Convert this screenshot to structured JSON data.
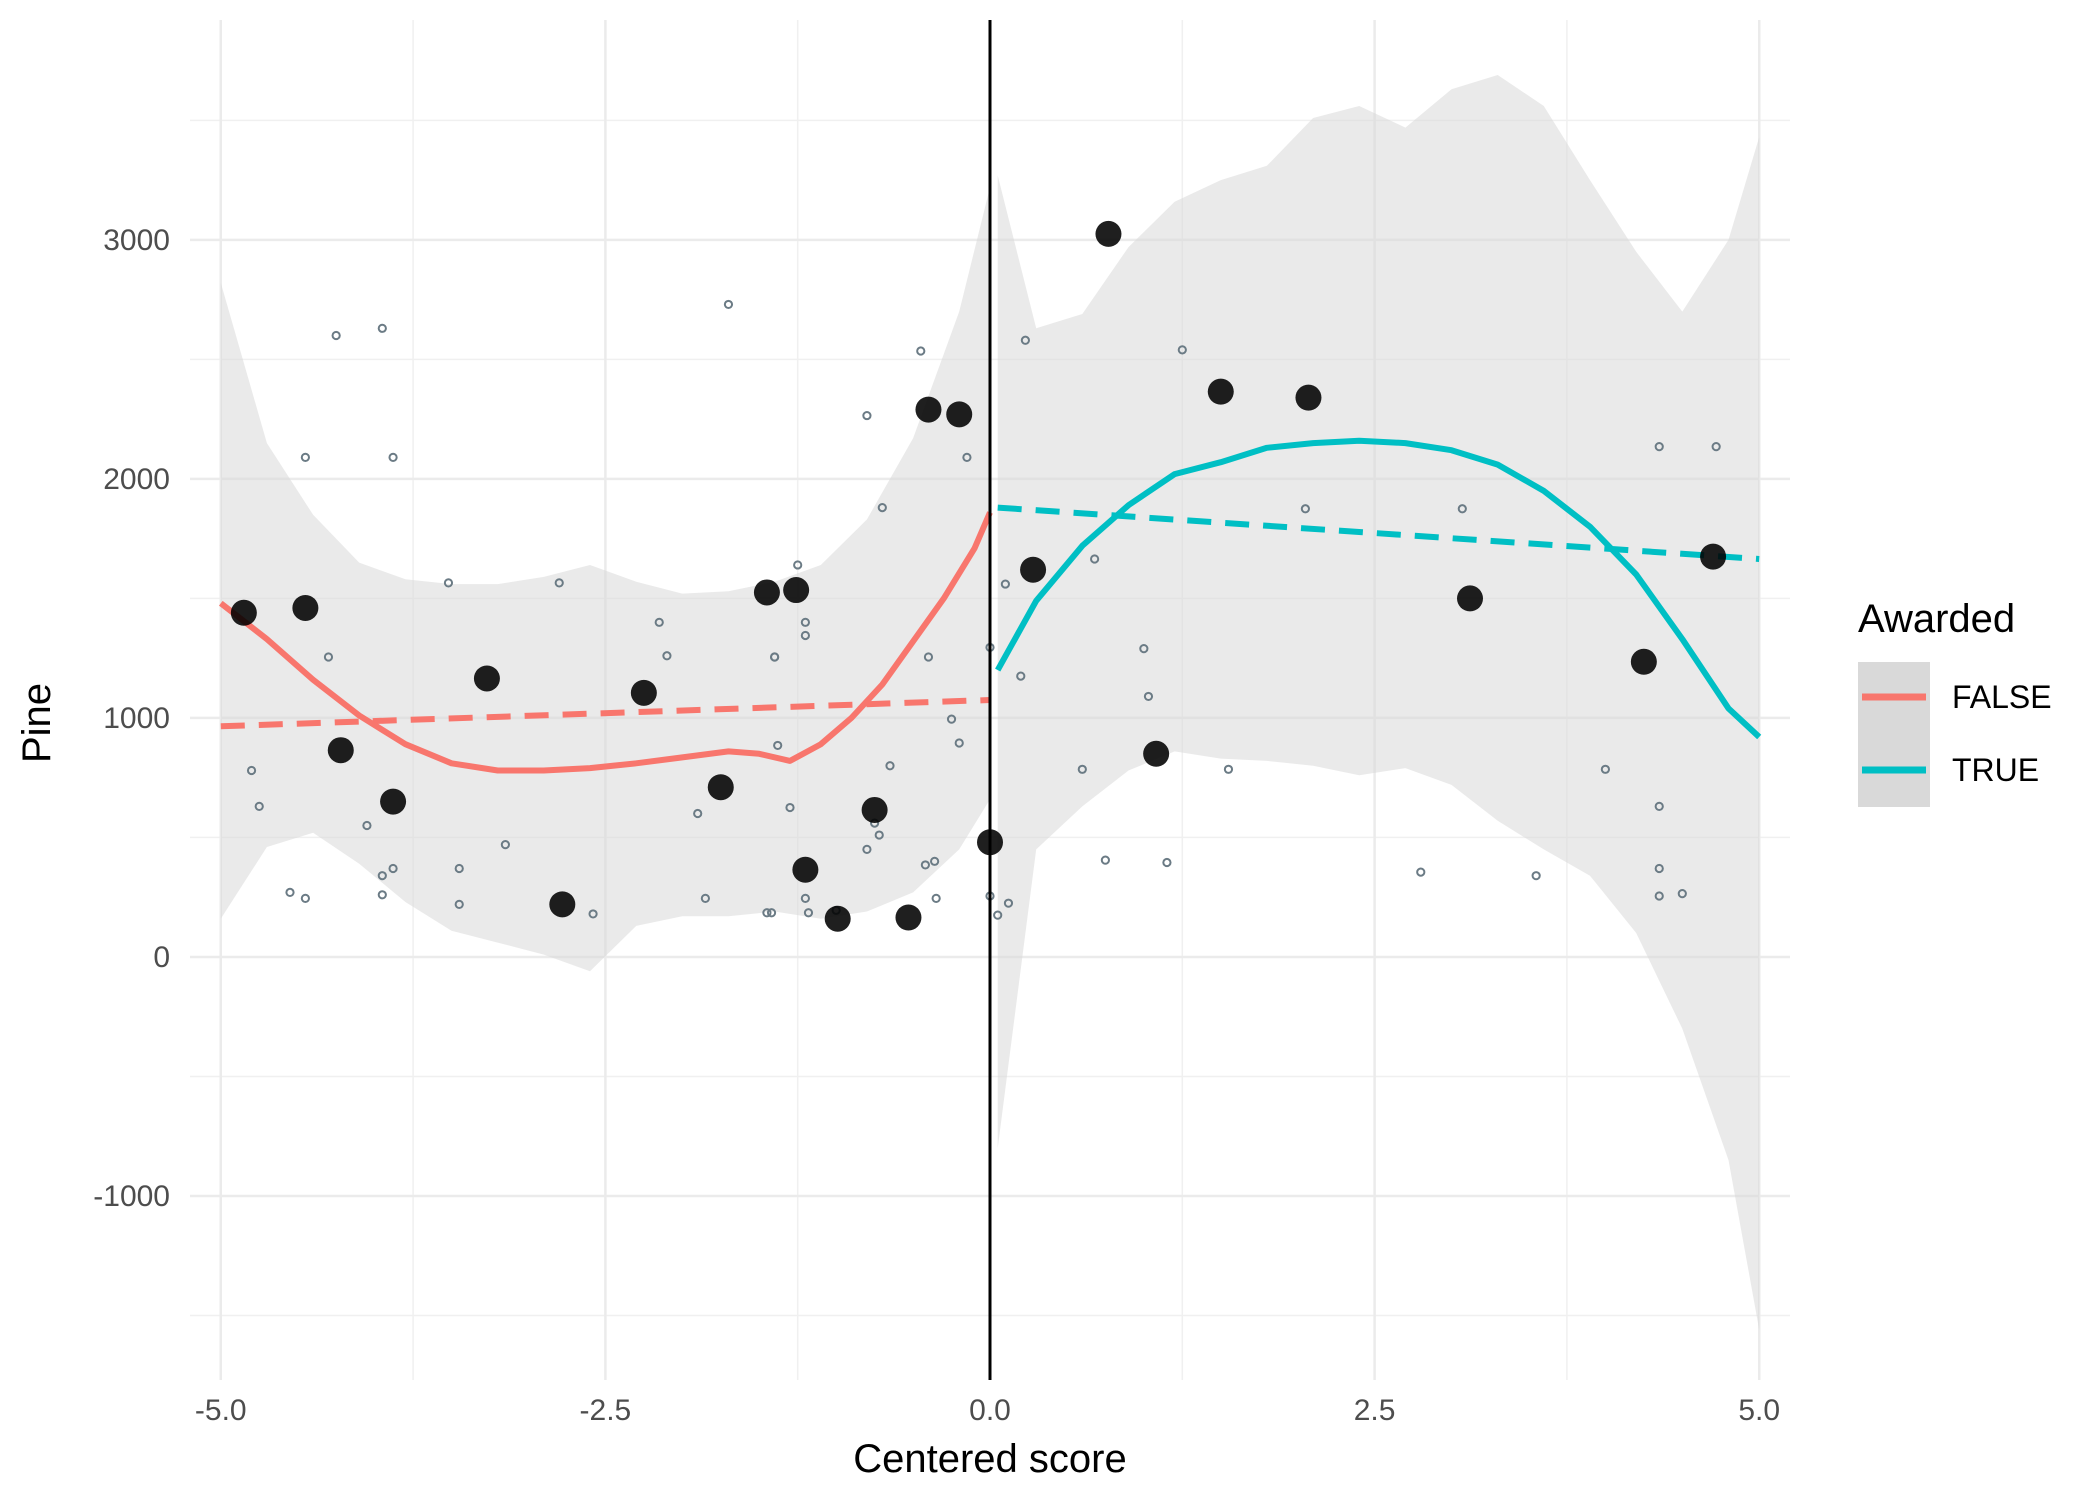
{
  "chart_data": {
    "type": "scatter",
    "title": "",
    "xlabel": "Centered score",
    "ylabel": "Pine",
    "xlim": [
      -5.2,
      5.2
    ],
    "ylim": [
      -1770,
      3920
    ],
    "x_ticks": [
      -5.0,
      -2.5,
      0.0,
      2.5,
      5.0
    ],
    "x_tick_labels": [
      "-5.0",
      "-2.5",
      "0.0",
      "2.5",
      "5.0"
    ],
    "y_ticks": [
      -1000,
      0,
      1000,
      2000,
      3000
    ],
    "y_tick_labels": [
      "-1000",
      "0",
      "1000",
      "2000",
      "3000"
    ],
    "grid": true,
    "cutoff_x": 0.0,
    "legend": {
      "title": "Awarded",
      "placement": "right",
      "entries": [
        {
          "label": "FALSE",
          "color": "#F8766D"
        },
        {
          "label": "TRUE",
          "color": "#00BFC4"
        }
      ]
    },
    "colors": {
      "false": "#F8766D",
      "true": "#00BFC4",
      "band": "#d9d9d9",
      "binned_point": "#000000",
      "raw_point": "#6b7b85"
    },
    "binned_points": {
      "x": [
        -4.85,
        -4.45,
        -4.22,
        -3.88,
        -3.27,
        -2.78,
        -2.25,
        -1.75,
        -1.45,
        -1.26,
        -1.2,
        -0.99,
        -0.75,
        -0.53,
        -0.4,
        -0.2,
        0.0,
        0.28,
        0.77,
        1.08,
        1.5,
        2.07,
        3.12,
        4.25,
        4.7
      ],
      "y": [
        1440,
        1460,
        865,
        650,
        1165,
        220,
        1105,
        710,
        1525,
        1535,
        365,
        160,
        615,
        165,
        2290,
        2270,
        480,
        1620,
        3025,
        850,
        2365,
        2340,
        1500,
        1235,
        1675
      ]
    },
    "raw_points": {
      "x": [
        -4.8,
        -4.75,
        -4.55,
        -4.45,
        -4.45,
        -4.3,
        -4.25,
        -4.05,
        -3.95,
        -3.95,
        -3.95,
        -3.88,
        -3.88,
        -3.52,
        -3.45,
        -3.45,
        -3.15,
        -2.8,
        -2.58,
        -2.15,
        -2.1,
        -1.9,
        -1.85,
        -1.7,
        -1.45,
        -1.42,
        -1.4,
        -1.4,
        -1.38,
        -1.3,
        -1.25,
        -1.2,
        -1.2,
        -1.2,
        -1.18,
        -1.0,
        -0.8,
        -0.8,
        -0.75,
        -0.72,
        -0.7,
        -0.65,
        -0.45,
        -0.42,
        -0.4,
        -0.36,
        -0.35,
        -0.25,
        -0.2,
        -0.15,
        0.0,
        0.0,
        0.05,
        0.1,
        0.12,
        0.2,
        0.23,
        0.6,
        0.68,
        0.75,
        1.0,
        1.03,
        1.15,
        1.25,
        1.55,
        2.05,
        2.8,
        3.07,
        3.55,
        4.0,
        4.35,
        4.35,
        4.35,
        4.35,
        4.5,
        4.72
      ],
      "y": [
        780,
        630,
        270,
        245,
        2090,
        1255,
        2600,
        550,
        2630,
        340,
        260,
        2090,
        370,
        1565,
        370,
        220,
        470,
        1565,
        180,
        1400,
        1260,
        600,
        245,
        2730,
        185,
        185,
        1255,
        1255,
        885,
        625,
        1640,
        1400,
        1345,
        245,
        185,
        195,
        2265,
        450,
        560,
        510,
        1880,
        800,
        2535,
        385,
        1255,
        400,
        245,
        995,
        895,
        2090,
        255,
        1295,
        175,
        1560,
        225,
        1175,
        2580,
        785,
        1665,
        405,
        1290,
        1090,
        395,
        2540,
        785,
        1875,
        355,
        1875,
        340,
        785,
        630,
        370,
        255,
        2135,
        265,
        2135
      ]
    },
    "series": [
      {
        "name": "FALSE",
        "style": "solid",
        "x": [
          -5.0,
          -4.7,
          -4.4,
          -4.1,
          -3.8,
          -3.5,
          -3.2,
          -2.9,
          -2.6,
          -2.3,
          -2.0,
          -1.7,
          -1.5,
          -1.3,
          -1.1,
          -0.9,
          -0.7,
          -0.5,
          -0.3,
          -0.1,
          0.0
        ],
        "y": [
          1480,
          1330,
          1160,
          1010,
          890,
          810,
          780,
          780,
          790,
          810,
          835,
          860,
          850,
          820,
          890,
          1000,
          1140,
          1320,
          1500,
          1710,
          1860
        ]
      },
      {
        "name": "FALSE",
        "style": "dashed",
        "x": [
          -5.0,
          0.0
        ],
        "y": [
          965,
          1075
        ]
      },
      {
        "name": "TRUE",
        "style": "solid",
        "x": [
          0.05,
          0.3,
          0.6,
          0.9,
          1.2,
          1.5,
          1.8,
          2.1,
          2.4,
          2.7,
          3.0,
          3.3,
          3.6,
          3.9,
          4.2,
          4.5,
          4.8,
          5.0
        ],
        "y": [
          1200,
          1490,
          1720,
          1890,
          2020,
          2070,
          2130,
          2150,
          2160,
          2150,
          2120,
          2060,
          1950,
          1800,
          1600,
          1330,
          1040,
          920
        ]
      },
      {
        "name": "TRUE",
        "style": "dashed",
        "x": [
          0.05,
          5.0
        ],
        "y": [
          1880,
          1665
        ]
      }
    ],
    "confidence_band_false": {
      "x": [
        -5.0,
        -4.7,
        -4.4,
        -4.1,
        -3.8,
        -3.5,
        -3.2,
        -2.9,
        -2.6,
        -2.3,
        -2.0,
        -1.7,
        -1.4,
        -1.1,
        -0.8,
        -0.5,
        -0.2,
        0.0
      ],
      "upper": [
        2820,
        2150,
        1850,
        1650,
        1580,
        1560,
        1560,
        1590,
        1640,
        1570,
        1520,
        1530,
        1570,
        1640,
        1830,
        2170,
        2700,
        3220
      ],
      "lower": [
        160,
        460,
        520,
        390,
        230,
        110,
        60,
        10,
        -60,
        130,
        170,
        170,
        190,
        160,
        190,
        270,
        450,
        660
      ]
    },
    "confidence_band_true": {
      "x": [
        0.05,
        0.3,
        0.6,
        0.9,
        1.2,
        1.5,
        1.8,
        2.1,
        2.4,
        2.7,
        3.0,
        3.3,
        3.6,
        3.9,
        4.2,
        4.5,
        4.8,
        5.0
      ],
      "upper": [
        3270,
        2630,
        2690,
        2970,
        3160,
        3250,
        3310,
        3510,
        3560,
        3470,
        3630,
        3690,
        3560,
        3250,
        2950,
        2700,
        3000,
        3430
      ],
      "lower": [
        -800,
        450,
        630,
        780,
        860,
        830,
        820,
        800,
        760,
        790,
        720,
        570,
        450,
        340,
        100,
        -300,
        -850,
        -1560
      ]
    }
  }
}
